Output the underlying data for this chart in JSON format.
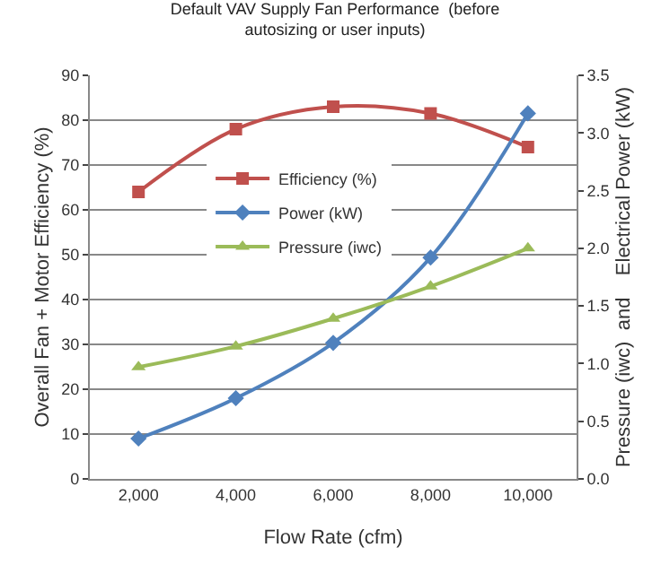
{
  "chart_data": {
    "type": "line",
    "title": "Default VAV Supply Fan Performance  (before\nautosizing or user inputs)",
    "xlabel": "Flow Rate (cfm)",
    "ylabel": "Overall Fan + Motor Efficiency (%)",
    "y2label": "Pressure (iwc)  and    Electrical Power (kW)",
    "categories": [
      "2,000",
      "4,000",
      "6,000",
      "8,000",
      "10,000"
    ],
    "series": [
      {
        "name": "Efficiency (%)",
        "color": "#c0504d",
        "marker": "square",
        "values": [
          64,
          78,
          83,
          81.5,
          74
        ]
      },
      {
        "name": "Power (kW)",
        "color": "#4f81bd",
        "marker": "diamond",
        "axis": "y2",
        "values": [
          0.35,
          0.7,
          1.18,
          1.92,
          3.17
        ]
      },
      {
        "name": "Pressure (iwc)",
        "color": "#9bbb59",
        "marker": "triangle",
        "axis": "y2",
        "values": [
          0.97,
          1.15,
          1.39,
          1.67,
          2.0
        ]
      }
    ],
    "ylim": [
      0,
      90
    ],
    "yticks": [
      0,
      10,
      20,
      30,
      40,
      50,
      60,
      70,
      80,
      90
    ],
    "y2lim": [
      0,
      3.5
    ],
    "y2ticks": [
      {
        "value": 0,
        "label": "0.0"
      },
      0.5,
      {
        "value": 1,
        "label": "1.0"
      },
      1.5,
      {
        "value": 2,
        "label": "2.0"
      },
      2.5,
      {
        "value": 3,
        "label": "3.0"
      },
      3.5
    ],
    "grid": "y",
    "legend": "center"
  }
}
